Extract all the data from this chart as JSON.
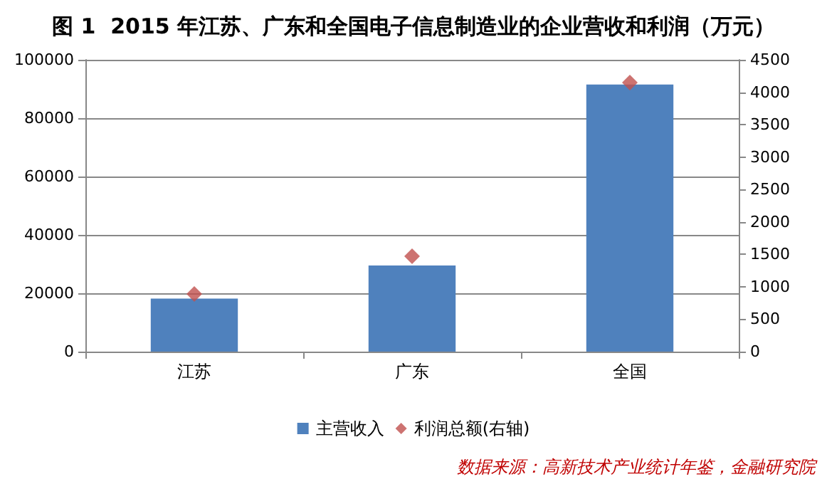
{
  "chart_data": {
    "type": "bar",
    "title": "图 1  2015 年江苏、广东和全国电子信息制造业的企业营收和利润（万元）",
    "categories": [
      "江苏",
      "广东",
      "全国"
    ],
    "series": [
      {
        "name": "主营收入",
        "color": "#4f81bd",
        "values": [
          18200,
          29500,
          91500
        ]
      },
      {
        "name": "利润总额(右轴)",
        "type": "scatter",
        "axis": "y2",
        "color": "#c0504d",
        "marker": "diamond",
        "values": [
          890,
          1470,
          4150
        ]
      }
    ],
    "ylim": [
      0,
      100000
    ],
    "yticks": [
      0,
      20000,
      40000,
      60000,
      80000,
      100000
    ],
    "y2lim": [
      0,
      4500
    ],
    "y2ticks": [
      0,
      500,
      1000,
      1500,
      2000,
      2500,
      3000,
      3500,
      4000,
      4500
    ],
    "grid": "y",
    "legend": "bottom",
    "annotations": [
      "数据来源：高新技术产业统计年鉴，金融研究院"
    ]
  }
}
